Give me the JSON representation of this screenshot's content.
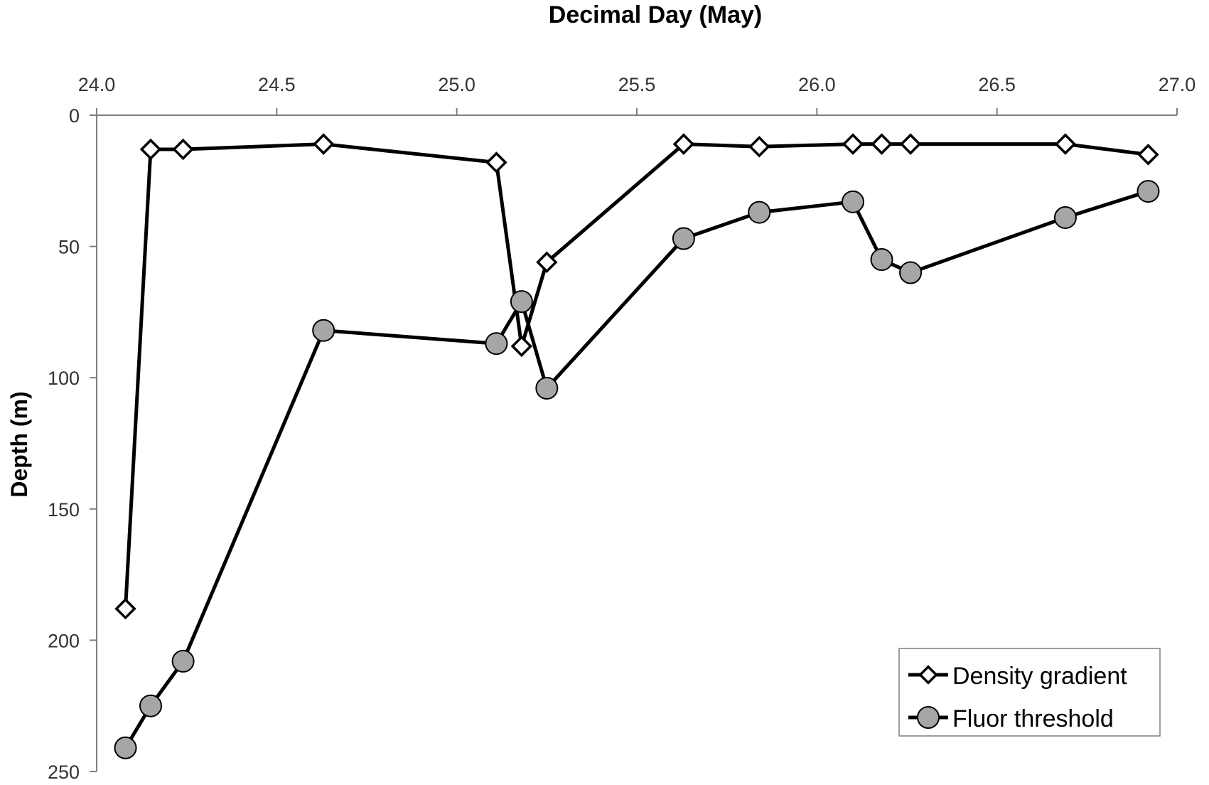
{
  "chart_data": {
    "type": "line",
    "title": "Decimal Day (May)",
    "xlabel": "Decimal Day (May)",
    "ylabel": "Depth (m)",
    "xlim": [
      24.0,
      27.0
    ],
    "ylim": [
      0,
      250
    ],
    "y_inverted": true,
    "x_axis_position": "top",
    "x_ticks": [
      24.0,
      24.5,
      25.0,
      25.5,
      26.0,
      26.5,
      27.0
    ],
    "x_tick_labels": [
      "24.0",
      "24.5",
      "25.0",
      "25.5",
      "26.0",
      "26.5",
      "27.0"
    ],
    "y_ticks": [
      0,
      50,
      100,
      150,
      200,
      250
    ],
    "y_tick_labels": [
      "0",
      "50",
      "100",
      "150",
      "200",
      "250"
    ],
    "grid": false,
    "legend_position": "bottom-right",
    "series": [
      {
        "name": "Density gradient",
        "marker": "diamond-open",
        "x": [
          24.08,
          24.15,
          24.24,
          24.63,
          25.11,
          25.18,
          25.25,
          25.63,
          25.84,
          26.1,
          26.18,
          26.26,
          26.69,
          26.92
        ],
        "y": [
          188,
          13,
          13,
          11,
          18,
          88,
          56,
          11,
          12,
          11,
          11,
          11,
          11,
          15
        ]
      },
      {
        "name": "Fluor threshold",
        "marker": "circle-filled",
        "color": "#a6a6a6",
        "x": [
          24.08,
          24.15,
          24.24,
          24.63,
          25.11,
          25.18,
          25.25,
          25.63,
          25.84,
          26.1,
          26.18,
          26.26,
          26.69,
          26.92
        ],
        "y": [
          241,
          225,
          208,
          82,
          87,
          71,
          104,
          47,
          37,
          33,
          55,
          60,
          39,
          29
        ]
      }
    ]
  }
}
